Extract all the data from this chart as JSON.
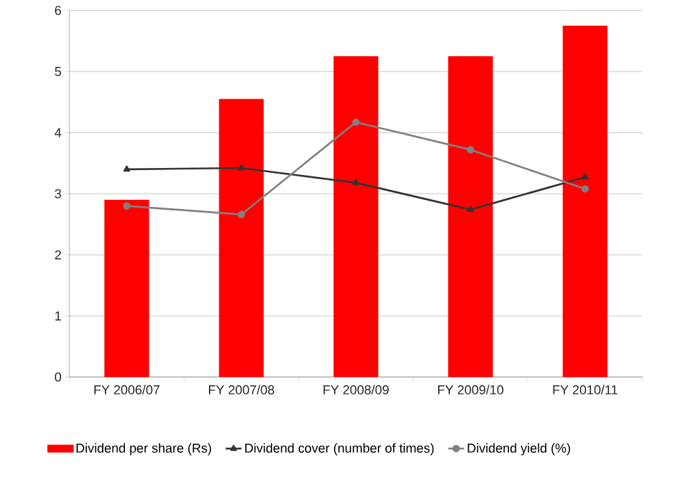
{
  "chart_data": {
    "type": "bar",
    "categories": [
      "FY 2006/07",
      "FY 2007/08",
      "FY 2008/09",
      "FY 2009/10",
      "FY 2010/11"
    ],
    "ylim": [
      0,
      6
    ],
    "yticks": [
      0,
      1,
      2,
      3,
      4,
      5,
      6
    ],
    "grid": "y",
    "legend": "bottom",
    "series": [
      {
        "name": "Dividend per share (Rs)",
        "color": "#ff0000",
        "values": [
          2.9,
          4.55,
          5.25,
          5.25,
          5.75
        ]
      },
      {
        "name": "Dividend cover (number of times)",
        "type": "line",
        "marker": "triangle",
        "color": "#333333",
        "values": [
          3.4,
          3.42,
          3.18,
          2.74,
          3.27
        ]
      },
      {
        "name": "Dividend yield (%)",
        "type": "line",
        "marker": "circle",
        "color": "#808080",
        "values": [
          2.8,
          2.66,
          4.17,
          3.72,
          3.08
        ]
      }
    ]
  }
}
